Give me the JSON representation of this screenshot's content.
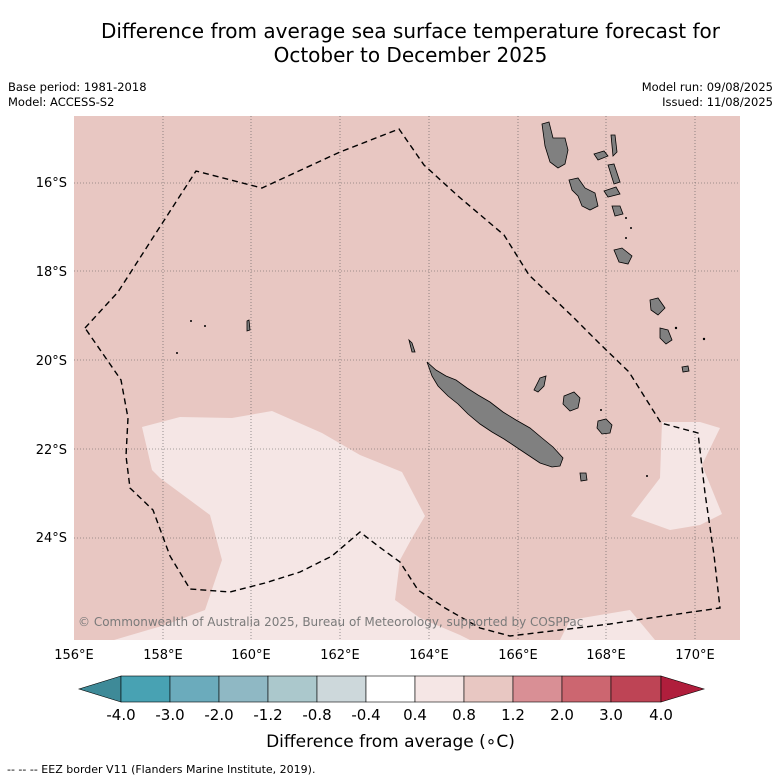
{
  "title_line1": "Difference from average sea surface temperature forecast for",
  "title_line2": "October to December 2025",
  "meta_left": {
    "base_period": "Base period: 1981-2018",
    "model": "Model: ACCESS-S2"
  },
  "meta_right": {
    "model_run": "Model run: 09/08/2025",
    "issued": "Issued: 11/08/2025"
  },
  "map": {
    "lon_ticks": [
      "156°E",
      "158°E",
      "160°E",
      "162°E",
      "164°E",
      "166°E",
      "168°E",
      "170°E"
    ],
    "lat_ticks": [
      "16°S",
      "18°S",
      "20°S",
      "22°S",
      "24°S"
    ],
    "copyright": "© Commonwealth of Australia 2025, Bureau of Meteorology, supported by COSPPac",
    "background_category": "0.8 to 1.2",
    "region_features": [
      "New Caledonia",
      "Vanuatu",
      "Loyalty Islands",
      "Chesterfield Islands"
    ]
  },
  "colorbar": {
    "title": "Difference from average (∘C)",
    "tick_labels": [
      "-4.0",
      "-3.0",
      "-2.0",
      "-1.2",
      "-0.8",
      "-0.4",
      "0.4",
      "0.8",
      "1.2",
      "2.0",
      "3.0",
      "4.0"
    ],
    "colors": [
      "#3e8a98",
      "#48a2b3",
      "#6babbc",
      "#8fb8c4",
      "#abc8cc",
      "#cdd8db",
      "#ffffff",
      "#f5e6e5",
      "#e8c7c2",
      "#d98f95",
      "#cc6670",
      "#be4455",
      "#b01e3c"
    ]
  },
  "footnote": "--  --  -- EEZ border V11 (Flanders Marine Institute, 2019)."
}
